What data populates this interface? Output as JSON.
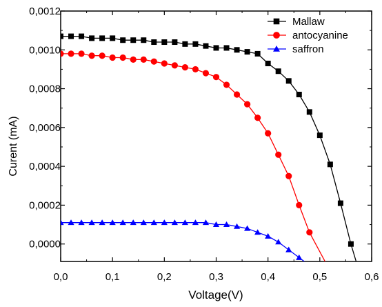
{
  "chart_data": {
    "type": "line",
    "xlabel": "Voltage(V)",
    "ylabel": "Curent (mA)",
    "xlim": [
      0,
      0.6
    ],
    "ylim": [
      -9e-05,
      0.0012
    ],
    "xticks": [
      {
        "v": 0.0,
        "label": "0,0"
      },
      {
        "v": 0.1,
        "label": "0,1"
      },
      {
        "v": 0.2,
        "label": "0,2"
      },
      {
        "v": 0.3,
        "label": "0,3"
      },
      {
        "v": 0.4,
        "label": "0,4"
      },
      {
        "v": 0.5,
        "label": "0,5"
      },
      {
        "v": 0.6,
        "label": "0,6"
      }
    ],
    "yticks": [
      {
        "v": 0.0,
        "label": "0,0000"
      },
      {
        "v": 0.0002,
        "label": "0,0002"
      },
      {
        "v": 0.0004,
        "label": "0,0004"
      },
      {
        "v": 0.0006,
        "label": "0,0006"
      },
      {
        "v": 0.0008,
        "label": "0,0008"
      },
      {
        "v": 0.001,
        "label": "0,0010"
      },
      {
        "v": 0.0012,
        "label": "0,0012"
      }
    ],
    "grid": false,
    "legend_position": "top-right",
    "series": [
      {
        "name": "Mallaw",
        "color": "#000000",
        "marker": "square",
        "points": [
          [
            0.0,
            0.00107
          ],
          [
            0.02,
            0.00107
          ],
          [
            0.04,
            0.00107
          ],
          [
            0.06,
            0.00106
          ],
          [
            0.08,
            0.00106
          ],
          [
            0.1,
            0.00106
          ],
          [
            0.12,
            0.00105
          ],
          [
            0.14,
            0.00105
          ],
          [
            0.16,
            0.00105
          ],
          [
            0.18,
            0.00104
          ],
          [
            0.2,
            0.00104
          ],
          [
            0.22,
            0.00104
          ],
          [
            0.24,
            0.00103
          ],
          [
            0.26,
            0.00103
          ],
          [
            0.28,
            0.00102
          ],
          [
            0.3,
            0.00101
          ],
          [
            0.32,
            0.00101
          ],
          [
            0.34,
            0.001
          ],
          [
            0.36,
            0.00099
          ],
          [
            0.38,
            0.00098
          ],
          [
            0.4,
            0.00093
          ],
          [
            0.42,
            0.00089
          ],
          [
            0.44,
            0.00084
          ],
          [
            0.46,
            0.00077
          ],
          [
            0.48,
            0.00068
          ],
          [
            0.5,
            0.00056
          ],
          [
            0.52,
            0.00041
          ],
          [
            0.54,
            0.00021
          ],
          [
            0.56,
            0.0
          ],
          [
            0.57,
            -9e-05
          ]
        ]
      },
      {
        "name": "antocyanine",
        "color": "#ff0000",
        "marker": "circle",
        "points": [
          [
            0.0,
            0.00098
          ],
          [
            0.02,
            0.00098
          ],
          [
            0.04,
            0.00098
          ],
          [
            0.06,
            0.00097
          ],
          [
            0.08,
            0.00097
          ],
          [
            0.1,
            0.00096
          ],
          [
            0.12,
            0.00096
          ],
          [
            0.14,
            0.00095
          ],
          [
            0.16,
            0.00095
          ],
          [
            0.18,
            0.00094
          ],
          [
            0.2,
            0.00093
          ],
          [
            0.22,
            0.00092
          ],
          [
            0.24,
            0.00091
          ],
          [
            0.26,
            0.0009
          ],
          [
            0.28,
            0.00088
          ],
          [
            0.3,
            0.00086
          ],
          [
            0.32,
            0.00082
          ],
          [
            0.34,
            0.00077
          ],
          [
            0.36,
            0.00072
          ],
          [
            0.38,
            0.00065
          ],
          [
            0.4,
            0.00057
          ],
          [
            0.42,
            0.00046
          ],
          [
            0.44,
            0.00035
          ],
          [
            0.46,
            0.0002
          ],
          [
            0.48,
            6e-05
          ],
          [
            0.51,
            -9e-05
          ]
        ]
      },
      {
        "name": "saffron",
        "color": "#0000ff",
        "marker": "triangle",
        "points": [
          [
            0.0,
            0.00011
          ],
          [
            0.02,
            0.00011
          ],
          [
            0.04,
            0.00011
          ],
          [
            0.06,
            0.00011
          ],
          [
            0.08,
            0.00011
          ],
          [
            0.1,
            0.00011
          ],
          [
            0.12,
            0.00011
          ],
          [
            0.14,
            0.00011
          ],
          [
            0.16,
            0.00011
          ],
          [
            0.18,
            0.00011
          ],
          [
            0.2,
            0.00011
          ],
          [
            0.22,
            0.00011
          ],
          [
            0.24,
            0.00011
          ],
          [
            0.26,
            0.00011
          ],
          [
            0.28,
            0.00011
          ],
          [
            0.3,
            0.0001
          ],
          [
            0.32,
            0.0001
          ],
          [
            0.34,
            9e-05
          ],
          [
            0.36,
            8e-05
          ],
          [
            0.38,
            6e-05
          ],
          [
            0.4,
            4e-05
          ],
          [
            0.42,
            1e-05
          ],
          [
            0.44,
            -3e-05
          ],
          [
            0.46,
            -7e-05
          ],
          [
            0.47,
            -9e-05
          ]
        ]
      }
    ]
  }
}
